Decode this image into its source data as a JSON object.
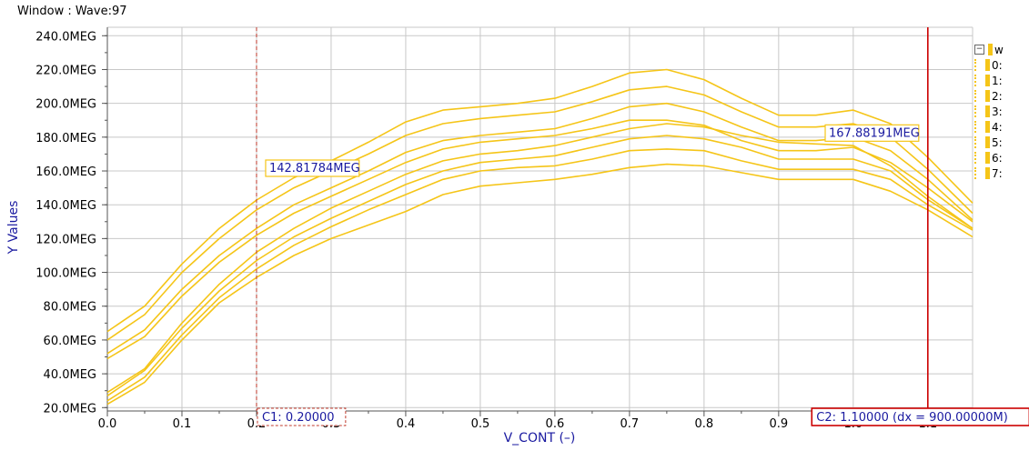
{
  "window": {
    "title": "Window : Wave:97"
  },
  "chart_data": {
    "type": "line",
    "xlabel": "V_CONT (–)",
    "ylabel": "Y Values",
    "xlim": [
      0.0,
      1.16
    ],
    "ylim": [
      18,
      245
    ],
    "x_ticks": [
      0.0,
      0.1,
      0.2,
      0.3,
      0.4,
      0.5,
      0.6,
      0.7,
      0.8,
      0.9,
      1.0,
      1.1
    ],
    "x_tick_labels": [
      "0.0",
      "0.1",
      "0.2",
      "0.3",
      "0.4",
      "0.5",
      "0.6",
      "0.7",
      "0.8",
      "0.9",
      "1.0",
      "1.1"
    ],
    "y_ticks": [
      20,
      40,
      60,
      80,
      100,
      120,
      140,
      160,
      180,
      200,
      220,
      240
    ],
    "y_tick_labels": [
      "20.0MEG",
      "40.0MEG",
      "60.0MEG",
      "80.0MEG",
      "100.0MEG",
      "120.0MEG",
      "140.0MEG",
      "160.0MEG",
      "180.0MEG",
      "200.0MEG",
      "220.0MEG",
      "240.0MEG"
    ],
    "grid": true,
    "color": "#f5c518",
    "x": [
      0.0,
      0.05,
      0.1,
      0.15,
      0.2,
      0.25,
      0.3,
      0.35,
      0.4,
      0.45,
      0.5,
      0.55,
      0.6,
      0.65,
      0.7,
      0.75,
      0.8,
      0.85,
      0.9,
      0.95,
      1.0,
      1.05,
      1.1,
      1.16
    ],
    "series": [
      {
        "values": [
          65,
          80,
          105,
          126,
          142.8,
          156,
          166,
          177,
          189,
          196,
          198,
          200,
          203,
          210,
          218,
          220,
          214,
          203,
          193,
          193,
          196,
          188,
          168,
          141
        ]
      },
      {
        "values": [
          60,
          75,
          100,
          120,
          137,
          150,
          160,
          170,
          181,
          188,
          191,
          193,
          195,
          201,
          208,
          210,
          205,
          195,
          186,
          186,
          188,
          180,
          161,
          135
        ]
      },
      {
        "values": [
          52,
          66,
          90,
          110,
          126,
          140,
          150,
          160,
          171,
          178,
          181,
          183,
          185,
          191,
          198,
          200,
          195,
          186,
          178,
          178,
          180,
          172,
          155,
          131
        ]
      },
      {
        "values": [
          49,
          62,
          86,
          106,
          122,
          135,
          145,
          155,
          165,
          173,
          177,
          179,
          181,
          185,
          190,
          190,
          187,
          178,
          172,
          172,
          174,
          165,
          150,
          130
        ]
      },
      {
        "values": [
          29,
          43,
          70,
          93,
          112,
          126,
          138,
          148,
          158,
          166,
          170,
          172,
          175,
          180,
          185,
          188,
          186,
          181,
          177,
          176,
          175,
          163,
          145,
          126
        ]
      },
      {
        "values": [
          27,
          42,
          67,
          89,
          107,
          121,
          132,
          142,
          152,
          160,
          165,
          167,
          169,
          174,
          179,
          181,
          179,
          174,
          167,
          167,
          167,
          160,
          143,
          126
        ]
      },
      {
        "values": [
          24,
          38,
          63,
          85,
          102,
          116,
          127,
          137,
          146,
          155,
          160,
          162,
          163,
          167,
          172,
          173,
          172,
          166,
          161,
          161,
          161,
          155,
          140,
          125
        ]
      },
      {
        "values": [
          22,
          35,
          60,
          82,
          97,
          110,
          120,
          128,
          136,
          146,
          151,
          153,
          155,
          158,
          162,
          164,
          163,
          159,
          155,
          155,
          155,
          148,
          137,
          121
        ]
      }
    ],
    "cursors": [
      {
        "x": 0.2,
        "label": "C1: 0.20000",
        "color": "#c0392b",
        "style": "dashed",
        "readout": "142.81784MEG",
        "readout_y": 142.8
      },
      {
        "x": 1.1,
        "label": "C2: 1.10000 (dx = 900.00000M)",
        "color": "#cc0000",
        "style": "solid",
        "readout": "167.88191MEG",
        "readout_y": 167.9
      }
    ]
  },
  "legend": {
    "header": "w",
    "toggle": "−",
    "items": [
      "0:",
      "1:",
      "2:",
      "3:",
      "4:",
      "5:",
      "6:",
      "7:"
    ]
  }
}
